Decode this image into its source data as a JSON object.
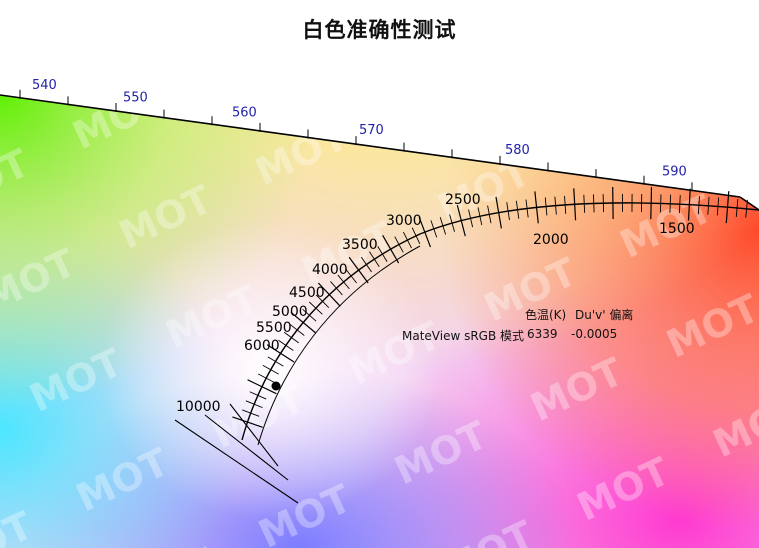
{
  "chart_data": {
    "type": "scatter",
    "title": "白色准确性测试",
    "wavelength_ticks_nm": [
      "540",
      "550",
      "560",
      "570",
      "580",
      "590"
    ],
    "cct_ticks_K": [
      "10000",
      "6000",
      "5500",
      "5000",
      "4500",
      "4000",
      "3500",
      "3000",
      "2500",
      "2000",
      "1500"
    ],
    "table": {
      "headers": [
        "色温(K)",
        "Du'v' 偏离"
      ],
      "rows": [
        {
          "label": "MateView sRGB 模式",
          "cct": "6339",
          "duv": "-0.0005"
        }
      ]
    },
    "measured_point": {
      "cct_K": 6339,
      "duv": -0.0005
    },
    "watermark": "MOT"
  }
}
